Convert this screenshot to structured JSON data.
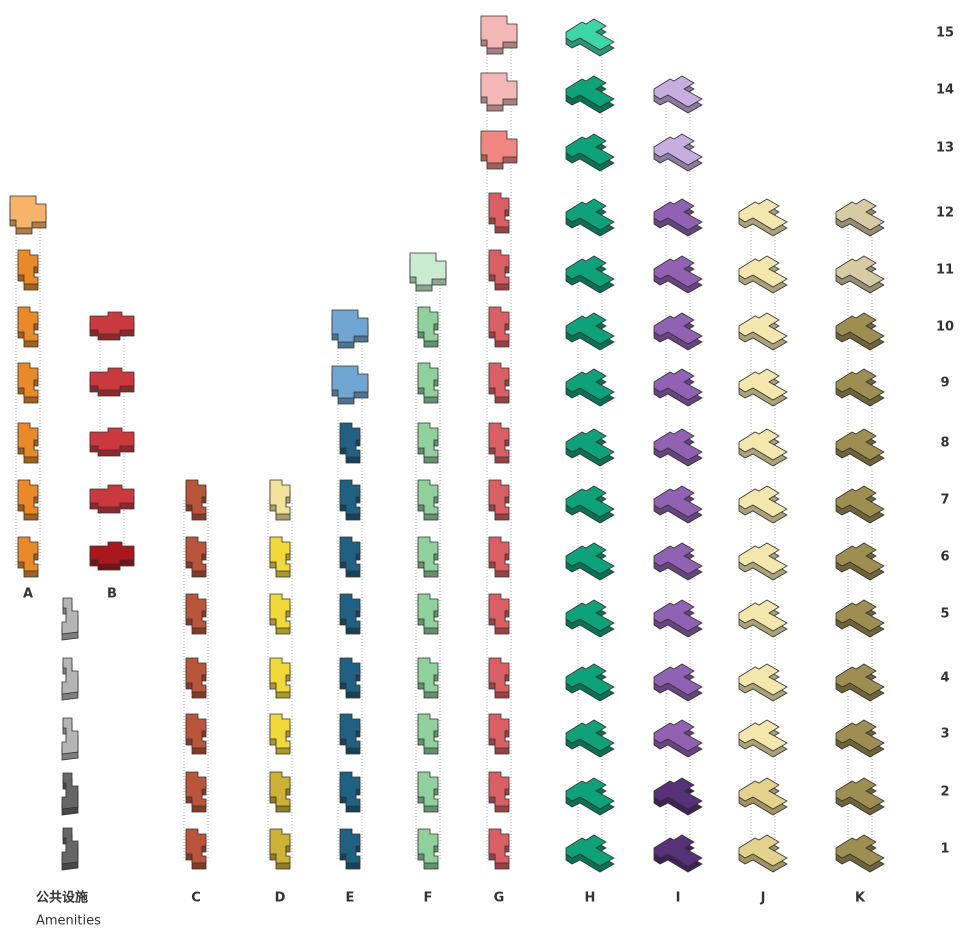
{
  "floor_labels": [
    "1",
    "2",
    "3",
    "4",
    "5",
    "6",
    "7",
    "8",
    "9",
    "10",
    "11",
    "12",
    "13",
    "14",
    "15"
  ],
  "column_labels": [
    "A",
    "B",
    "C",
    "D",
    "E",
    "F",
    "G",
    "H",
    "I",
    "J",
    "K"
  ],
  "amenities": {
    "title": "公共设施",
    "subtitle": "Amenities"
  }
}
